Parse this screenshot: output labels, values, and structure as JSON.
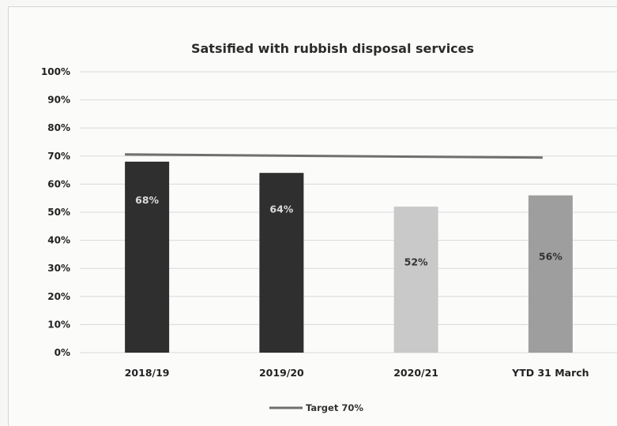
{
  "chart_data": {
    "type": "bar",
    "title": "Satsified with rubbish disposal services",
    "xlabel": "",
    "ylabel": "",
    "categories": [
      "2018/19",
      "2019/20",
      "2020/21",
      "YTD 31 March"
    ],
    "values": [
      68,
      64,
      52,
      56
    ],
    "data_labels": [
      "68%",
      "64%",
      "52%",
      "56%"
    ],
    "bar_colors": [
      "#2f2f2f",
      "#2f2f2f",
      "#c9c9c9",
      "#9e9e9e"
    ],
    "label_colors": [
      "#dcdcdc",
      "#dcdcdc",
      "#333333",
      "#333333"
    ],
    "ylim": [
      0,
      100
    ],
    "y_ticks": [
      0,
      10,
      20,
      30,
      40,
      50,
      60,
      70,
      80,
      90,
      100
    ],
    "y_tick_labels": [
      "0%",
      "10%",
      "20%",
      "30%",
      "40%",
      "50%",
      "60%",
      "70%",
      "80%",
      "90%",
      "100%"
    ],
    "grid": true,
    "target": {
      "name": "Target 70%",
      "value": 70,
      "color": "#6f6f6f"
    },
    "legend": {
      "position": "bottom",
      "entries": [
        "Target 70%"
      ]
    }
  }
}
